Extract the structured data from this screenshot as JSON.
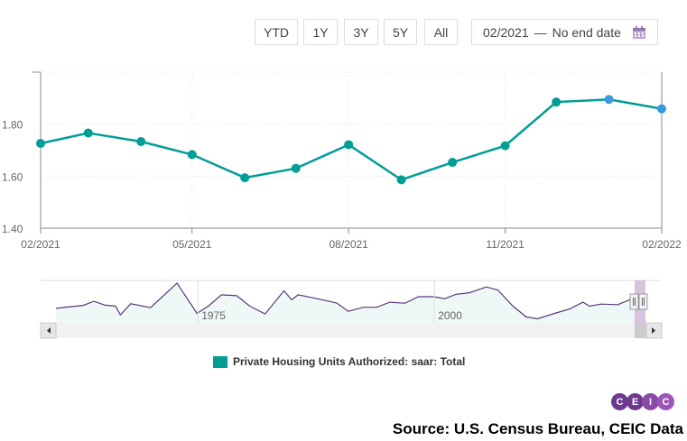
{
  "toolbar": {
    "ranges": [
      "YTD",
      "1Y",
      "3Y",
      "5Y",
      "All"
    ],
    "date_start": "02/2021",
    "date_sep": "—",
    "date_end": "No end date",
    "calendar_icon": "calendar-icon"
  },
  "chart_data": {
    "type": "line",
    "categories": [
      "02/2021",
      "03/2021",
      "04/2021",
      "05/2021",
      "06/2021",
      "07/2021",
      "08/2021",
      "09/2021",
      "10/2021",
      "11/2021",
      "12/2021",
      "01/2022",
      "02/2022"
    ],
    "series": [
      {
        "name": "Private Housing Units Authorized: saar: Total",
        "values": [
          1.726,
          1.766,
          1.733,
          1.683,
          1.594,
          1.63,
          1.721,
          1.586,
          1.653,
          1.717,
          1.885,
          1.895,
          1.859
        ],
        "color": "#009e96",
        "preliminary_color": "#3a9ae0",
        "preliminary_from_index": 11
      }
    ],
    "x_tick_labels": [
      "02/2021",
      "05/2021",
      "08/2021",
      "11/2021",
      "02/2022"
    ],
    "y_tick_labels": [
      "1.40",
      "1.60",
      "1.80"
    ],
    "ylim": [
      1.4,
      2.0
    ],
    "grid": true,
    "legend": "bottom-center",
    "navigator": {
      "tick_labels": [
        "1975",
        "2000"
      ],
      "line_color": "#5b3a7a",
      "points": [
        [
          1960,
          1.01
        ],
        [
          1961.5,
          1.1
        ],
        [
          1962.9,
          1.17
        ],
        [
          1964,
          1.39
        ],
        [
          1965.2,
          1.18
        ],
        [
          1966.3,
          1.13
        ],
        [
          1966.8,
          0.66
        ],
        [
          1967.9,
          1.26
        ],
        [
          1970,
          1.05
        ],
        [
          1972.8,
          2.37
        ],
        [
          1974.9,
          0.74
        ],
        [
          1976.1,
          1.13
        ],
        [
          1977.5,
          1.74
        ],
        [
          1979.1,
          1.69
        ],
        [
          1980.5,
          1.13
        ],
        [
          1982.1,
          0.71
        ],
        [
          1984.1,
          1.96
        ],
        [
          1984.9,
          1.48
        ],
        [
          1985.6,
          1.74
        ],
        [
          1988.4,
          1.45
        ],
        [
          1989.7,
          1.29
        ],
        [
          1990.9,
          0.85
        ],
        [
          1992.5,
          1.07
        ],
        [
          1993.9,
          1.07
        ],
        [
          1995.3,
          1.34
        ],
        [
          1996.9,
          1.29
        ],
        [
          1998.3,
          1.64
        ],
        [
          1999.9,
          1.64
        ],
        [
          2001.1,
          1.53
        ],
        [
          2002.3,
          1.77
        ],
        [
          2003.7,
          1.85
        ],
        [
          2005.5,
          2.16
        ],
        [
          2006.7,
          2.0
        ],
        [
          2008.3,
          1.13
        ],
        [
          2009.7,
          0.55
        ],
        [
          2010.9,
          0.45
        ],
        [
          2012.7,
          0.74
        ],
        [
          2014.3,
          0.98
        ],
        [
          2015.7,
          1.34
        ],
        [
          2016.4,
          1.13
        ],
        [
          2017.6,
          1.24
        ],
        [
          2019.4,
          1.21
        ],
        [
          2020.8,
          1.51
        ],
        [
          2021.3,
          1.69
        ]
      ]
    }
  },
  "legend": {
    "label": "Private Housing Units Authorized: saar: Total"
  },
  "logo": {
    "letters": [
      "C",
      "E",
      "I",
      "C"
    ]
  },
  "source": "Source: U.S. Census Bureau, CEIC Data"
}
